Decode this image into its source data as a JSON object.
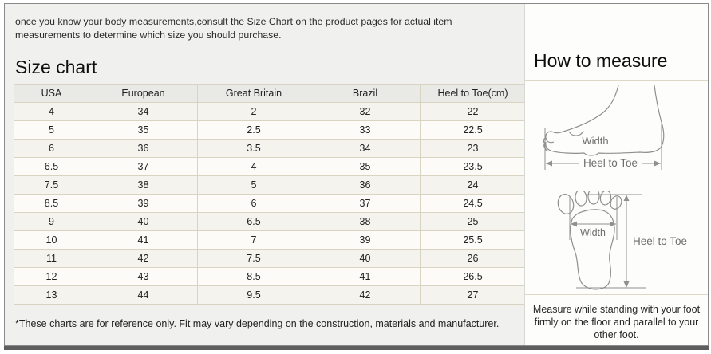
{
  "banner": {
    "text": "once you know your body measurements,consult the Size Chart on the product pages for actual item measurements to determine which size you should purchase."
  },
  "size_chart": {
    "title": "Size chart",
    "table": {
      "headers": [
        "USA",
        "European",
        "Great Britain",
        "Brazil",
        "Heel to Toe(cm)"
      ],
      "rows": [
        [
          "4",
          "34",
          "2",
          "32",
          "22"
        ],
        [
          "5",
          "35",
          "2.5",
          "33",
          "22.5"
        ],
        [
          "6",
          "36",
          "3.5",
          "34",
          "23"
        ],
        [
          "6.5",
          "37",
          "4",
          "35",
          "23.5"
        ],
        [
          "7.5",
          "38",
          "5",
          "36",
          "24"
        ],
        [
          "8.5",
          "39",
          "6",
          "37",
          "24.5"
        ],
        [
          "9",
          "40",
          "6.5",
          "38",
          "25"
        ],
        [
          "10",
          "41",
          "7",
          "39",
          "25.5"
        ],
        [
          "11",
          "42",
          "7.5",
          "40",
          "26"
        ],
        [
          "12",
          "43",
          "8.5",
          "41",
          "26.5"
        ],
        [
          "13",
          "44",
          "9.5",
          "42",
          "27"
        ]
      ]
    },
    "footnote": "*These charts are for reference only. Fit may vary depending on the construction, materials and manufacturer."
  },
  "how_to_measure": {
    "title": "How to measure",
    "side_view": {
      "width_label": "Width",
      "heel_to_toe_label": "Heel to Toe"
    },
    "bottom_view": {
      "width_label": "Width",
      "heel_to_toe_label": "Heel to Toe"
    },
    "instruction": "Measure while standing with your foot firmly on the floor and parallel to your other foot."
  },
  "colors": {
    "left_background": "#f0f0ee",
    "panel_background": "#fdfdfc",
    "table_border": "#d9d3c2",
    "table_header_bg": "#e9e9e5",
    "frame_border": "#8a8a8a",
    "bottom_edge": "#5e5e5e",
    "diagram_stroke": "#8f8f8f"
  }
}
